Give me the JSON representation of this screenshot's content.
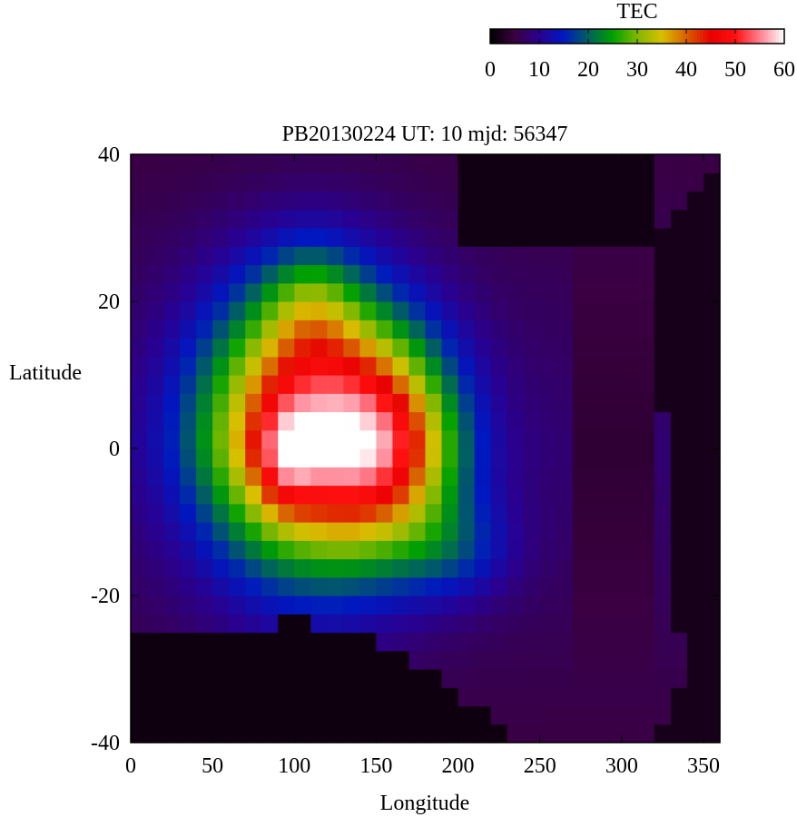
{
  "chart_data": {
    "type": "heatmap",
    "title": "PB20130224  UT: 10  mjd: 56347",
    "xlabel": "Longitude",
    "ylabel": "Latitude",
    "xlim": [
      0,
      360
    ],
    "ylim": [
      -40,
      40
    ],
    "x_ticks": [
      "0",
      "50",
      "100",
      "150",
      "200",
      "250",
      "300",
      "350"
    ],
    "y_ticks": [
      "40",
      "20",
      "0",
      "-20",
      "-40"
    ],
    "colorbar": {
      "label": "TEC",
      "range": [
        0,
        60
      ],
      "ticks": [
        "0",
        "10",
        "20",
        "30",
        "40",
        "50",
        "60"
      ],
      "stops": [
        {
          "v": 0,
          "color": "#000000"
        },
        {
          "v": 5,
          "color": "#3a0040"
        },
        {
          "v": 10,
          "color": "#2a0090"
        },
        {
          "v": 15,
          "color": "#0018c0"
        },
        {
          "v": 20,
          "color": "#006060"
        },
        {
          "v": 25,
          "color": "#00a000"
        },
        {
          "v": 30,
          "color": "#80b800"
        },
        {
          "v": 35,
          "color": "#d8c000"
        },
        {
          "v": 40,
          "color": "#d86000"
        },
        {
          "v": 45,
          "color": "#e80000"
        },
        {
          "v": 50,
          "color": "#ff1010"
        },
        {
          "v": 55,
          "color": "#ff8090"
        },
        {
          "v": 60,
          "color": "#ffffff"
        }
      ]
    },
    "model": {
      "x_step_deg": 10,
      "y_step_deg": 2.5,
      "features": [
        {
          "kind": "gaussian",
          "lon": 110,
          "lat": 3,
          "amp": 46,
          "sig_lon": 45,
          "sig_lat": 14
        },
        {
          "kind": "gaussian",
          "lon": 160,
          "lat": 0,
          "amp": 22,
          "sig_lon": 30,
          "sig_lat": 10
        },
        {
          "kind": "gaussian",
          "lon": 95,
          "lat": -1,
          "amp": 10,
          "sig_lon": 12,
          "sig_lat": 5
        },
        {
          "kind": "gaussian",
          "lon": 110,
          "lat": 20,
          "amp": 10,
          "sig_lon": 20,
          "sig_lat": 6
        },
        {
          "kind": "gaussian",
          "lon": 200,
          "lat": -14,
          "amp": 8,
          "sig_lon": 25,
          "sig_lat": 5
        }
      ],
      "baseline": 8,
      "north_hole": {
        "lon_min": 200,
        "lon_max": 320,
        "lat_min": 28
      },
      "south_hole_edges": [
        {
          "lon": 0,
          "lat": -26
        },
        {
          "lon": 60,
          "lat": -25
        },
        {
          "lon": 100,
          "lat": -23
        },
        {
          "lon": 150,
          "lat": -26
        },
        {
          "lon": 200,
          "lat": -33
        },
        {
          "lon": 240,
          "lat": -40
        }
      ],
      "right_hole_edges": [
        {
          "lat": 40,
          "lon": 360
        },
        {
          "lat": 28,
          "lon": 320
        },
        {
          "lat": -20,
          "lon": 330
        },
        {
          "lat": -30,
          "lon": 340
        },
        {
          "lat": -40,
          "lon": 320
        }
      ]
    }
  }
}
